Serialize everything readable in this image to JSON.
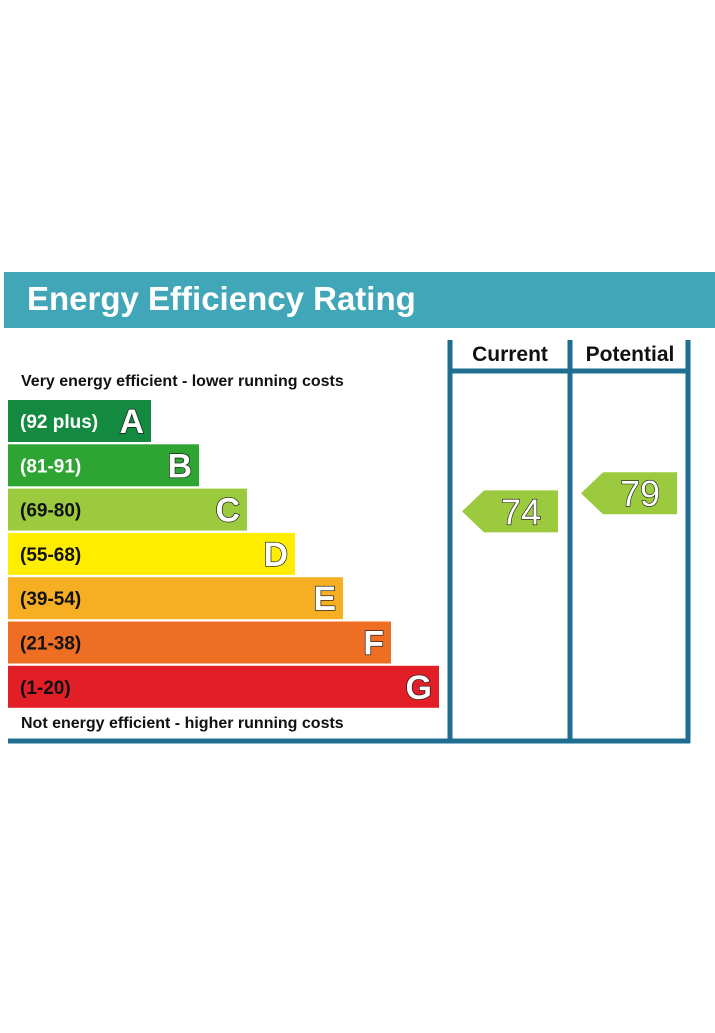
{
  "chart_data": {
    "type": "bar",
    "title": "Energy Efficiency Rating",
    "top_caption": "Very energy efficient - lower running costs",
    "bottom_caption": "Not energy efficient - higher running costs",
    "columns": [
      "Current",
      "Potential"
    ],
    "bands": [
      {
        "letter": "A",
        "range": "(92 plus)",
        "color": "#138a3f",
        "dark_text": false
      },
      {
        "letter": "B",
        "range": "(81-91)",
        "color": "#2ea533",
        "dark_text": false
      },
      {
        "letter": "C",
        "range": "(69-80)",
        "color": "#9bca3e",
        "dark_text": true
      },
      {
        "letter": "D",
        "range": "(55-68)",
        "color": "#ffed00",
        "dark_text": true
      },
      {
        "letter": "E",
        "range": "(39-54)",
        "color": "#f6ae22",
        "dark_text": true
      },
      {
        "letter": "F",
        "range": "(21-38)",
        "color": "#ee6f23",
        "dark_text": true
      },
      {
        "letter": "G",
        "range": "(1-20)",
        "color": "#e21f26",
        "dark_text": true
      }
    ],
    "ratings": [
      {
        "column": "Current",
        "value": 74,
        "band": "C",
        "color": "#9bca3e"
      },
      {
        "column": "Potential",
        "value": 79,
        "band": "C",
        "color": "#9bca3e"
      }
    ]
  },
  "colors": {
    "header_bg": "#41a6b8",
    "frame": "#1e6e91"
  }
}
